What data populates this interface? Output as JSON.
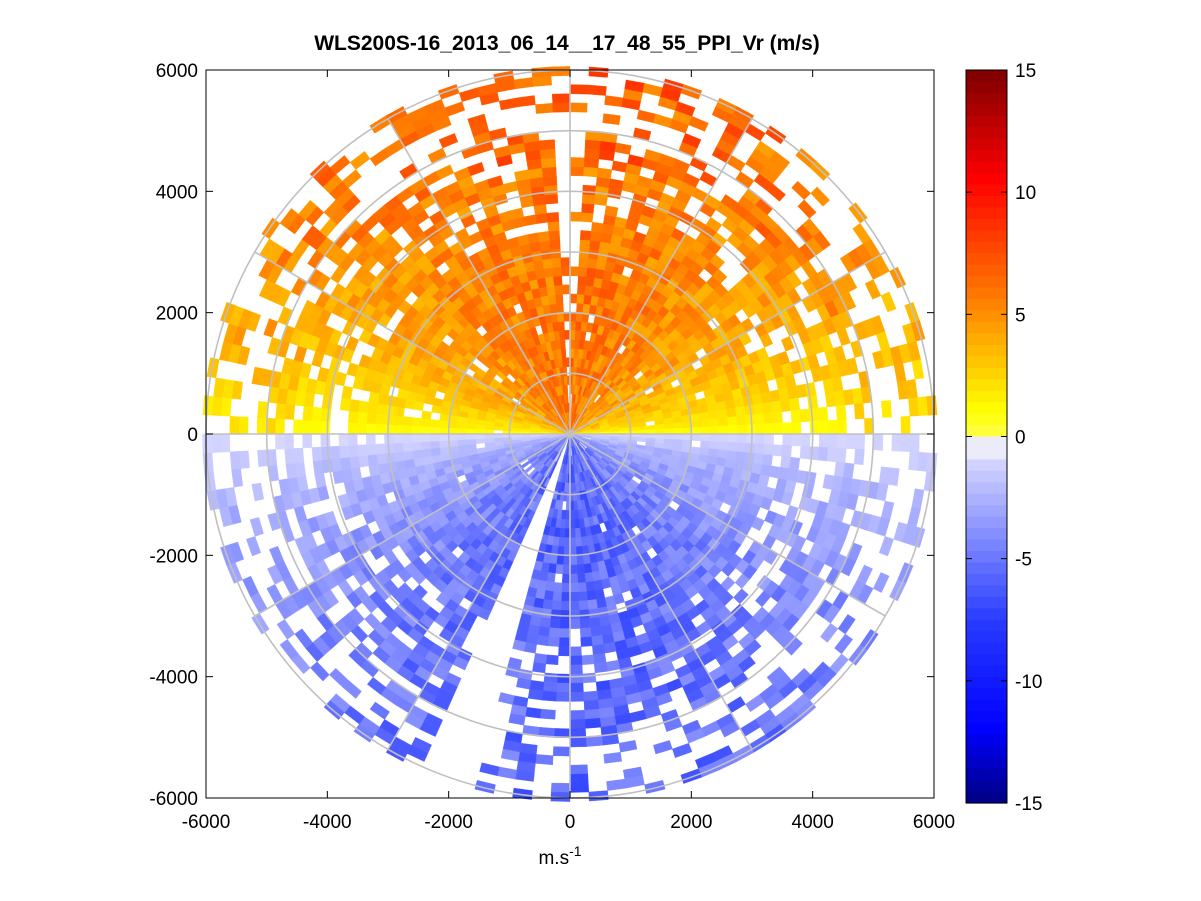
{
  "chart_data": {
    "type": "heatmap",
    "title": "WLS200S-16_2013_06_14__17_48_55_PPI_Vr (m/s)",
    "xlabel": "m.s",
    "xlabel_superscript": "-1",
    "ylabel": "",
    "xlim": [
      -6000,
      6000
    ],
    "ylim": [
      -6000,
      6000
    ],
    "x_ticks": [
      "-6000",
      "-4000",
      "-2000",
      "0",
      "2000",
      "4000",
      "6000"
    ],
    "y_ticks": [
      "6000",
      "4000",
      "2000",
      "0",
      "-2000",
      "-4000",
      "-6000"
    ],
    "grid": true,
    "polar_grid": {
      "range_rings": [
        1000,
        2000,
        3000,
        4000,
        5000,
        6000
      ],
      "spokes_deg": [
        0,
        30,
        60,
        90,
        120,
        150,
        180,
        210,
        240,
        270,
        300,
        330
      ]
    },
    "colorbar": {
      "clim": [
        -15,
        15
      ],
      "ticks": [
        "15",
        "10",
        "5",
        "0",
        "-5",
        "-10",
        "-15"
      ],
      "colormap": "blue-white-red"
    },
    "velocity_pattern": {
      "upper_half": "positive (0 to 8 m/s, mostly 3-6 m/s)",
      "lower_half": "negative (0 to -8 m/s, mostly -2 to -6 m/s)",
      "max_range": 6000,
      "data_gap_azimuth_deg": [
        195,
        205
      ]
    }
  }
}
